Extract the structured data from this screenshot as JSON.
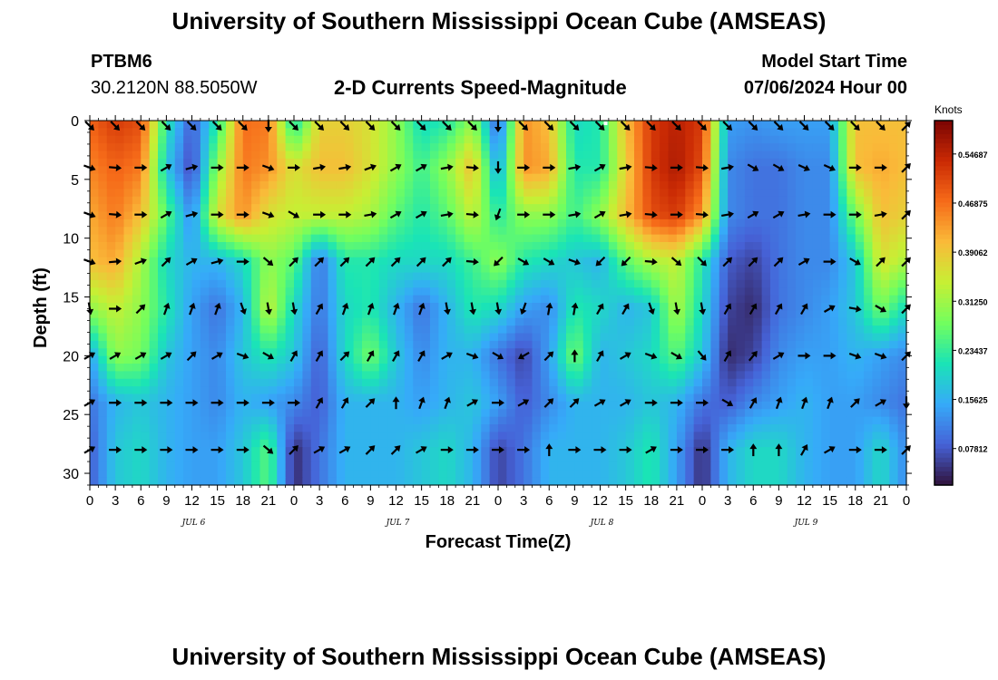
{
  "page": {
    "title_top": "University of Southern Mississippi Ocean Cube (AMSEAS)",
    "title_bottom": "University of Southern Mississippi Ocean Cube (AMSEAS)",
    "station_id": "PTBM6",
    "station_coords": "30.2120N  88.5050W",
    "plot_title": "2-D Currents Speed-Magnitude",
    "model_start_label": "Model Start Time",
    "model_start_value": "07/06/2024 Hour 00"
  },
  "colors": {
    "colormap": [
      "#30123b",
      "#4662d7",
      "#36aaf9",
      "#1ae4b6",
      "#72fe5e",
      "#c7ef34",
      "#faba39",
      "#f66b19",
      "#ca2a04",
      "#7a0403"
    ],
    "arrow": "#000000",
    "marker": "#ffffff"
  },
  "chart_data": {
    "type": "heatmap",
    "title": "2-D Currents Speed-Magnitude",
    "xlabel": "Forecast Time(Z)",
    "ylabel": "Depth (ft)",
    "xlim": [
      0,
      96
    ],
    "ylim": [
      31,
      0
    ],
    "x_ticks": [
      0,
      3,
      6,
      9,
      12,
      15,
      18,
      21,
      24,
      27,
      30,
      33,
      36,
      39,
      42,
      45,
      48,
      51,
      54,
      57,
      60,
      63,
      66,
      69,
      72,
      75,
      78,
      81,
      84,
      87,
      90,
      93,
      96
    ],
    "x_tick_labels": [
      "0",
      "3",
      "6",
      "9",
      "12",
      "15",
      "18",
      "21",
      "0",
      "3",
      "6",
      "9",
      "12",
      "15",
      "18",
      "21",
      "0",
      "3",
      "6",
      "9",
      "12",
      "15",
      "18",
      "21",
      "0",
      "3",
      "6",
      "9",
      "12",
      "15",
      "18",
      "21",
      "0"
    ],
    "day_labels": [
      {
        "hour": 12,
        "text": "JUL 6"
      },
      {
        "hour": 36,
        "text": "JUL 7"
      },
      {
        "hour": 60,
        "text": "JUL 8"
      },
      {
        "hour": 84,
        "text": "JUL 9"
      }
    ],
    "y_ticks": [
      0,
      5,
      10,
      15,
      20,
      25,
      30
    ],
    "y_tick_labels": [
      "0",
      "5",
      "10",
      "15",
      "20",
      "25",
      "30"
    ],
    "colorbar": {
      "label": "Knots",
      "range": [
        0.02,
        0.6
      ],
      "ticks": [
        0.07812,
        0.15625,
        0.23437,
        0.3125,
        0.39062,
        0.46875,
        0.54687
      ],
      "tick_labels": [
        "0.07812",
        "0.15625",
        "0.23437",
        "0.31250",
        "0.39062",
        "0.46875",
        "0.54687"
      ]
    },
    "depths": [
      0,
      4,
      8,
      12,
      16,
      20,
      24,
      28,
      31
    ],
    "hours": [
      0,
      3,
      6,
      9,
      12,
      15,
      18,
      21,
      24,
      27,
      30,
      33,
      36,
      39,
      42,
      45,
      48,
      51,
      54,
      57,
      60,
      63,
      66,
      69,
      72,
      75,
      78,
      81,
      84,
      87,
      90,
      93,
      96
    ],
    "speed_knots": [
      [
        0.48,
        0.52,
        0.5,
        0.22,
        0.08,
        0.22,
        0.47,
        0.46,
        0.2,
        0.38,
        0.38,
        0.36,
        0.3,
        0.2,
        0.22,
        0.3,
        0.08,
        0.44,
        0.4,
        0.2,
        0.22,
        0.4,
        0.52,
        0.55,
        0.52,
        0.14,
        0.13,
        0.14,
        0.14,
        0.14,
        0.4,
        0.4,
        0.4
      ],
      [
        0.45,
        0.48,
        0.46,
        0.18,
        0.06,
        0.3,
        0.46,
        0.44,
        0.36,
        0.4,
        0.4,
        0.36,
        0.3,
        0.24,
        0.3,
        0.4,
        0.14,
        0.44,
        0.42,
        0.22,
        0.22,
        0.38,
        0.52,
        0.56,
        0.5,
        0.12,
        0.1,
        0.1,
        0.12,
        0.12,
        0.4,
        0.42,
        0.4
      ],
      [
        0.42,
        0.46,
        0.4,
        0.26,
        0.12,
        0.36,
        0.44,
        0.36,
        0.34,
        0.34,
        0.34,
        0.32,
        0.26,
        0.22,
        0.26,
        0.34,
        0.22,
        0.3,
        0.3,
        0.24,
        0.3,
        0.4,
        0.5,
        0.52,
        0.44,
        0.12,
        0.1,
        0.1,
        0.12,
        0.12,
        0.28,
        0.4,
        0.38
      ],
      [
        0.4,
        0.42,
        0.32,
        0.2,
        0.16,
        0.16,
        0.2,
        0.3,
        0.26,
        0.1,
        0.22,
        0.22,
        0.2,
        0.2,
        0.2,
        0.24,
        0.3,
        0.22,
        0.2,
        0.18,
        0.16,
        0.26,
        0.32,
        0.34,
        0.22,
        0.08,
        0.06,
        0.1,
        0.12,
        0.12,
        0.18,
        0.36,
        0.32
      ],
      [
        0.3,
        0.34,
        0.3,
        0.22,
        0.14,
        0.1,
        0.16,
        0.34,
        0.2,
        0.1,
        0.2,
        0.22,
        0.16,
        0.1,
        0.16,
        0.22,
        0.2,
        0.14,
        0.12,
        0.22,
        0.2,
        0.16,
        0.18,
        0.32,
        0.2,
        0.06,
        0.04,
        0.1,
        0.12,
        0.14,
        0.18,
        0.28,
        0.2
      ],
      [
        0.14,
        0.3,
        0.28,
        0.18,
        0.14,
        0.12,
        0.18,
        0.22,
        0.18,
        0.08,
        0.2,
        0.28,
        0.18,
        0.12,
        0.16,
        0.16,
        0.1,
        0.06,
        0.14,
        0.28,
        0.16,
        0.18,
        0.2,
        0.26,
        0.18,
        0.04,
        0.06,
        0.12,
        0.14,
        0.14,
        0.16,
        0.14,
        0.12
      ],
      [
        0.1,
        0.16,
        0.18,
        0.16,
        0.14,
        0.12,
        0.16,
        0.14,
        0.12,
        0.08,
        0.16,
        0.16,
        0.16,
        0.14,
        0.16,
        0.18,
        0.14,
        0.08,
        0.12,
        0.16,
        0.16,
        0.16,
        0.18,
        0.16,
        0.1,
        0.08,
        0.12,
        0.14,
        0.16,
        0.14,
        0.14,
        0.12,
        0.1
      ],
      [
        0.08,
        0.18,
        0.2,
        0.16,
        0.14,
        0.14,
        0.18,
        0.26,
        0.04,
        0.1,
        0.16,
        0.16,
        0.16,
        0.18,
        0.2,
        0.16,
        0.06,
        0.1,
        0.16,
        0.16,
        0.16,
        0.18,
        0.22,
        0.14,
        0.04,
        0.16,
        0.2,
        0.2,
        0.16,
        0.14,
        0.14,
        0.2,
        0.12
      ],
      [
        0.08,
        0.18,
        0.2,
        0.16,
        0.14,
        0.14,
        0.18,
        0.26,
        0.04,
        0.1,
        0.16,
        0.16,
        0.16,
        0.18,
        0.2,
        0.16,
        0.06,
        0.1,
        0.16,
        0.16,
        0.16,
        0.18,
        0.22,
        0.14,
        0.04,
        0.16,
        0.2,
        0.2,
        0.16,
        0.14,
        0.14,
        0.2,
        0.12
      ]
    ],
    "arrow_depths": [
      0,
      4,
      8,
      12,
      16,
      20,
      24,
      28
    ],
    "arrow_directions_deg": [
      [
        135,
        135,
        135,
        135,
        135,
        135,
        135,
        180,
        135,
        135,
        135,
        135,
        135,
        135,
        135,
        135,
        180,
        135,
        135,
        135,
        135,
        135,
        135,
        135,
        135,
        135,
        135,
        135,
        135,
        135,
        135,
        135,
        45
      ],
      [
        110,
        95,
        90,
        60,
        75,
        90,
        90,
        110,
        90,
        80,
        80,
        70,
        60,
        60,
        80,
        95,
        180,
        90,
        90,
        80,
        60,
        80,
        95,
        90,
        95,
        80,
        120,
        120,
        115,
        115,
        90,
        90,
        45
      ],
      [
        110,
        95,
        90,
        60,
        75,
        90,
        90,
        110,
        120,
        90,
        90,
        80,
        60,
        60,
        80,
        95,
        200,
        90,
        90,
        80,
        60,
        80,
        95,
        90,
        95,
        80,
        60,
        60,
        80,
        90,
        90,
        80,
        45
      ],
      [
        110,
        85,
        70,
        45,
        60,
        75,
        90,
        130,
        45,
        45,
        45,
        45,
        45,
        45,
        45,
        95,
        225,
        120,
        120,
        110,
        225,
        225,
        95,
        130,
        135,
        45,
        45,
        45,
        60,
        90,
        120,
        45,
        45
      ],
      [
        170,
        90,
        45,
        20,
        20,
        20,
        160,
        170,
        170,
        30,
        20,
        20,
        20,
        20,
        170,
        170,
        170,
        200,
        10,
        10,
        30,
        30,
        160,
        170,
        170,
        30,
        30,
        30,
        30,
        60,
        100,
        120,
        45
      ],
      [
        60,
        60,
        60,
        60,
        45,
        60,
        110,
        120,
        30,
        30,
        45,
        30,
        30,
        30,
        60,
        110,
        120,
        240,
        45,
        0,
        30,
        60,
        110,
        120,
        140,
        30,
        40,
        60,
        90,
        90,
        110,
        110,
        45
      ],
      [
        60,
        90,
        90,
        90,
        90,
        90,
        90,
        90,
        90,
        30,
        30,
        45,
        0,
        20,
        20,
        60,
        90,
        60,
        45,
        45,
        60,
        60,
        90,
        90,
        90,
        120,
        30,
        20,
        20,
        20,
        45,
        60,
        180
      ],
      [
        60,
        90,
        90,
        90,
        90,
        90,
        90,
        130,
        45,
        60,
        60,
        45,
        45,
        60,
        90,
        90,
        90,
        90,
        0,
        90,
        90,
        90,
        60,
        90,
        90,
        90,
        0,
        0,
        30,
        60,
        90,
        90,
        45
      ]
    ]
  }
}
